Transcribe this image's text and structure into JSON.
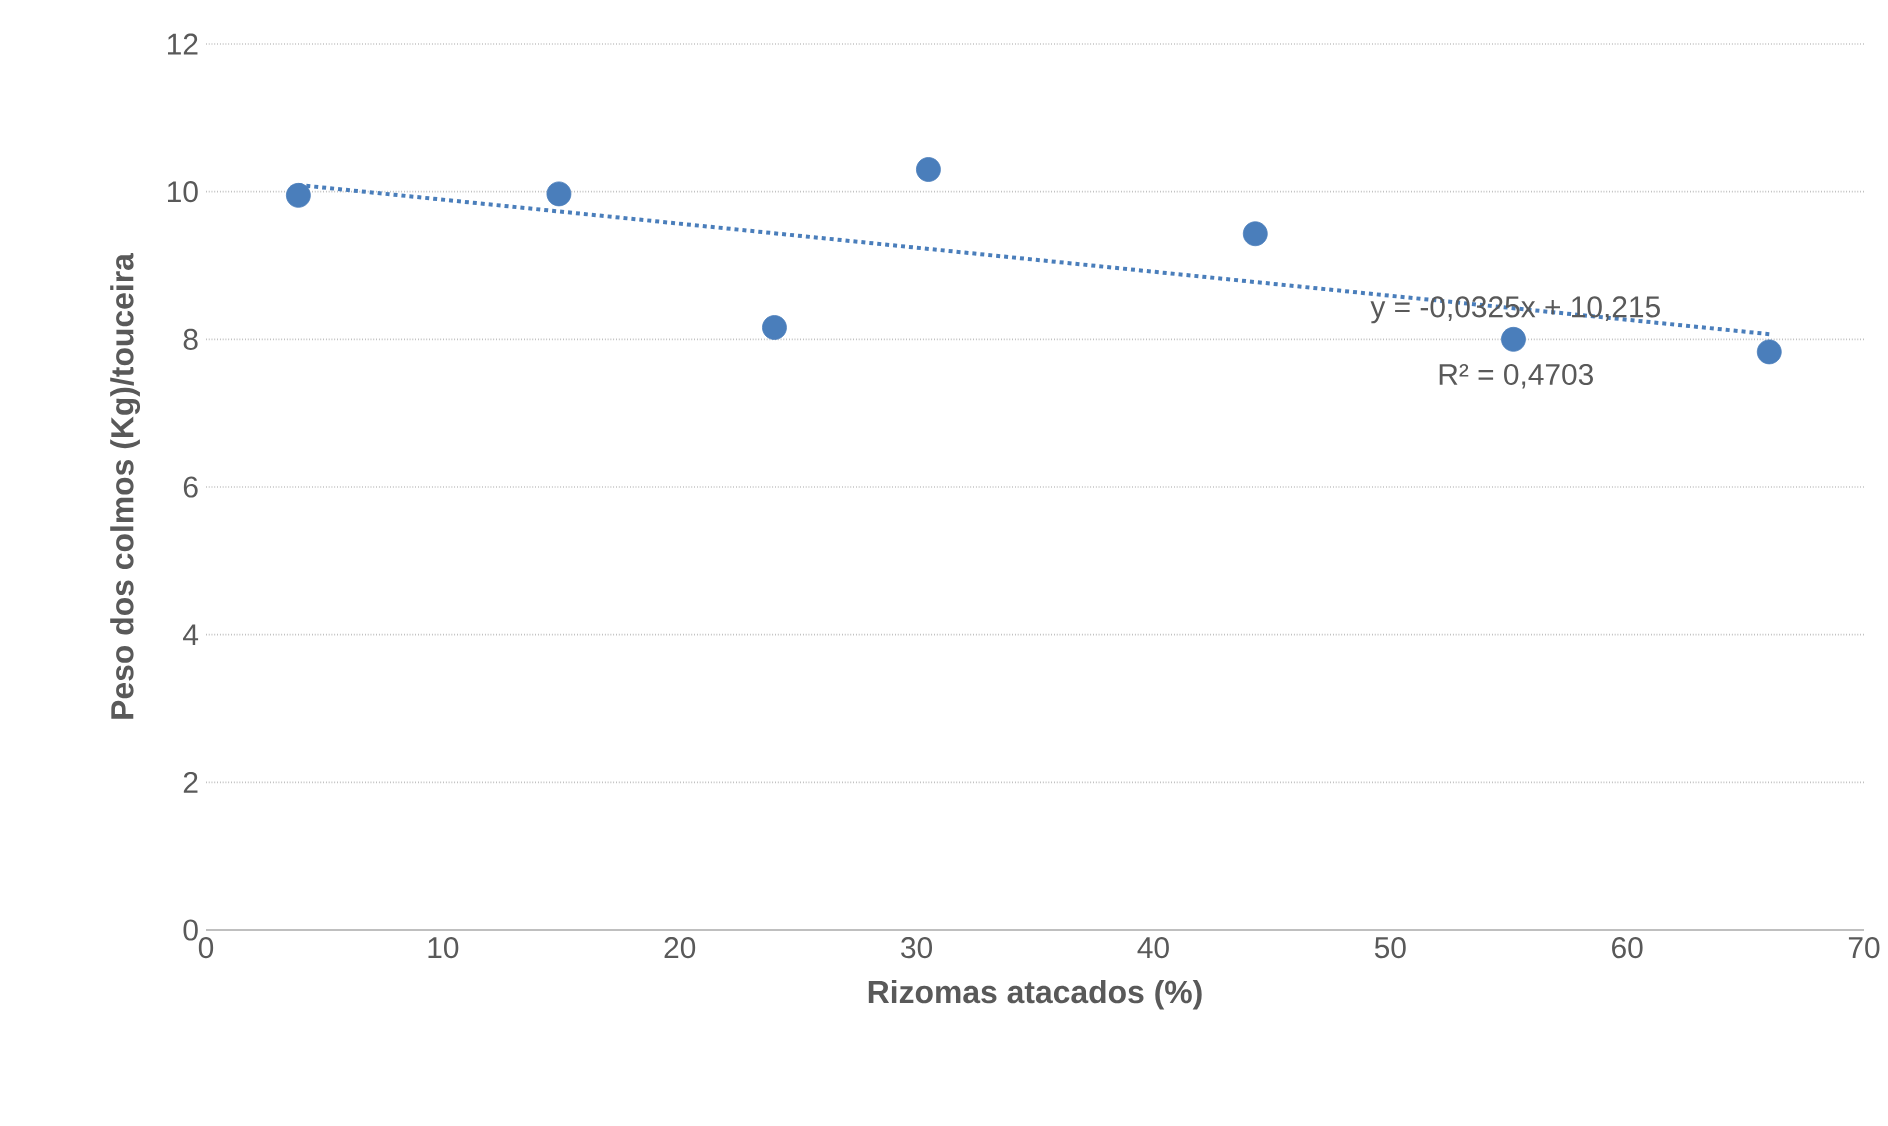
{
  "chart_data": {
    "type": "scatter",
    "xlabel": "Rizomas atacados (%)",
    "ylabel": "Peso dos colmos (Kg)/touceira",
    "x": [
      3.9,
      14.9,
      24.0,
      30.5,
      44.3,
      55.2,
      66.0
    ],
    "series": [
      {
        "color": "#4a7ebb",
        "values": [
          9.95,
          9.97,
          8.16,
          10.3,
          9.43,
          8.0,
          7.83
        ],
        "marker": "circle"
      },
      {
        "type": "line",
        "color": "#4a7ebb",
        "x": [
          3.9,
          66.0
        ],
        "values": [
          10.09,
          8.07
        ],
        "line_style": "dotted",
        "marker": "none"
      }
    ],
    "annotations": [
      "y = -0,0325x + 10,215",
      "R² = 0,4703"
    ],
    "xlim": [
      0,
      70
    ],
    "ylim": [
      0,
      12
    ],
    "xticks": [
      0,
      10,
      20,
      30,
      40,
      50,
      60,
      70
    ],
    "yticks": [
      0,
      2,
      4,
      6,
      8,
      10,
      12
    ],
    "grid": "y"
  }
}
